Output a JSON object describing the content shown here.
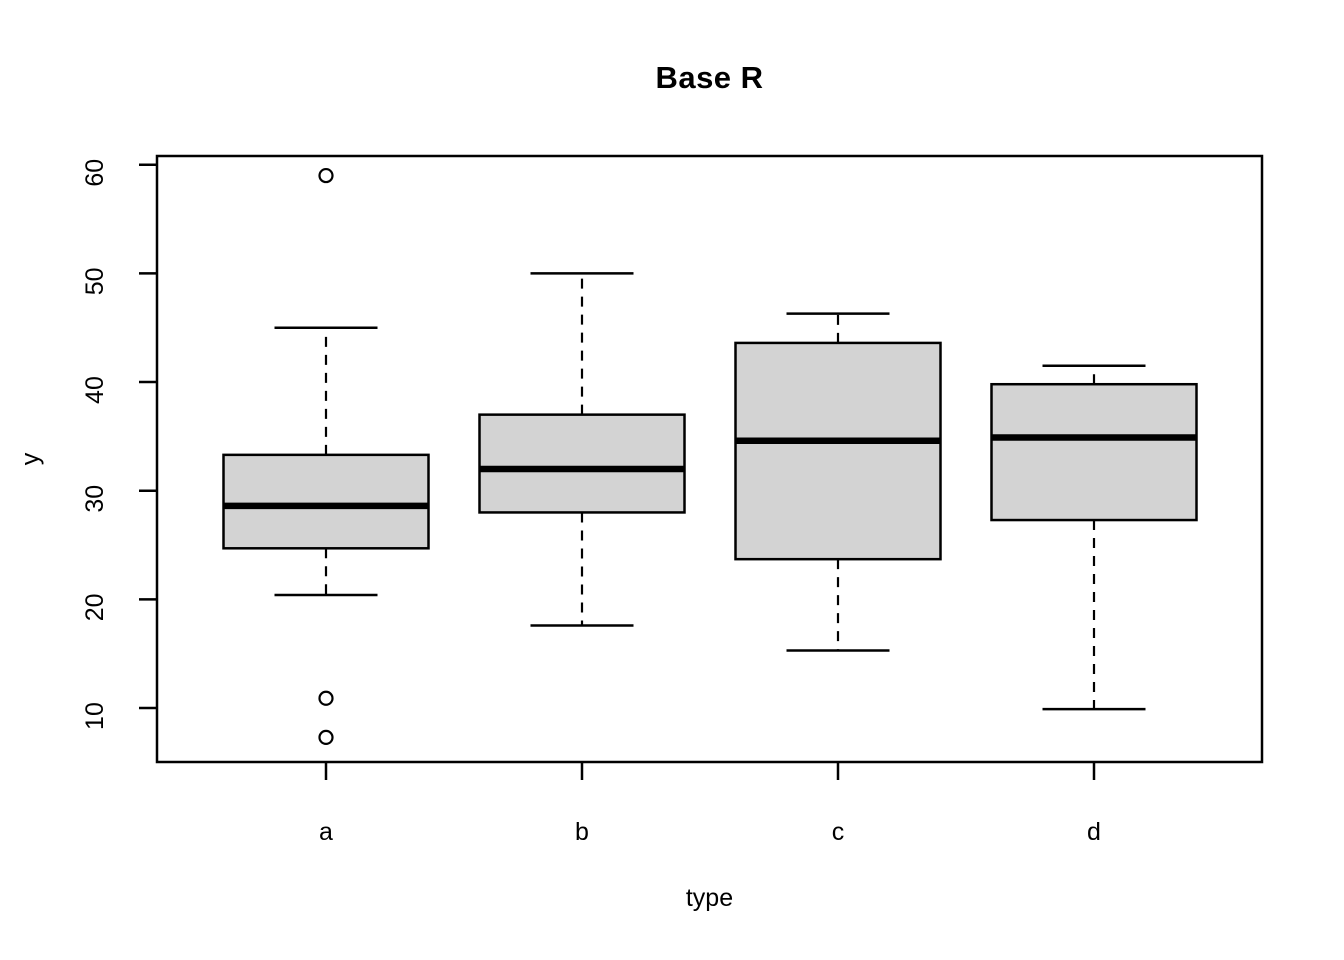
{
  "chart_data": {
    "type": "boxplot",
    "title": "Base R",
    "xlabel": "type",
    "ylabel": "y",
    "categories": [
      "a",
      "b",
      "c",
      "d"
    ],
    "y_ticks": [
      10,
      20,
      30,
      40,
      50,
      60
    ],
    "ylim": [
      5.1,
      60.8
    ],
    "grid": false,
    "legend": false,
    "orientation": "vertical",
    "series": [
      {
        "category": "a",
        "lower_whisker": 20.4,
        "q1": 24.7,
        "median": 28.6,
        "q3": 33.3,
        "upper_whisker": 45.0,
        "outliers": [
          59.0,
          10.9,
          7.3
        ]
      },
      {
        "category": "b",
        "lower_whisker": 17.6,
        "q1": 28.0,
        "median": 32.0,
        "q3": 37.0,
        "upper_whisker": 50.0,
        "outliers": []
      },
      {
        "category": "c",
        "lower_whisker": 15.3,
        "q1": 23.7,
        "median": 34.6,
        "q3": 43.6,
        "upper_whisker": 46.3,
        "outliers": []
      },
      {
        "category": "d",
        "lower_whisker": 9.9,
        "q1": 27.3,
        "median": 34.9,
        "q3": 39.8,
        "upper_whisker": 41.5,
        "outliers": []
      }
    ],
    "colors": {
      "box_fill": "#d3d3d3",
      "line": "#000000",
      "background": "#ffffff"
    },
    "whisker_line_style": "dashed"
  }
}
